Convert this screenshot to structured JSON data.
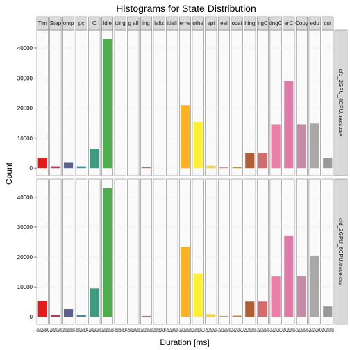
{
  "chart_data": {
    "type": "bar",
    "title": "Histograms for State Distribution",
    "xlabel": "Duration [ms]",
    "ylabel": "Count",
    "ylim": [
      -2500,
      46000
    ],
    "yticks": [
      0,
      10000,
      20000,
      30000,
      40000
    ],
    "y_tick_labels": [
      "0",
      "10000",
      "20000",
      "30000",
      "40000"
    ],
    "grid": true,
    "x_tick_labels": "-250250500",
    "column_labels": [
      "Tim",
      "Step",
      "omp",
      "pc",
      "C",
      "Idle",
      "tting",
      "g all",
      "ing",
      "ializ",
      "itiali",
      "erhe",
      "othe",
      "epi",
      "eei",
      "ocat",
      "hing",
      "ngC",
      "tingC",
      "erC",
      "Copy",
      "edu",
      "cut"
    ],
    "row_labels": [
      "cfd_2GPU_4CPU.trace.csv",
      "cfd_2GPU_6CPU.trace.csv"
    ],
    "colors": [
      "#e41a1c",
      "#a8405b",
      "#5d618f",
      "#4c8a9a",
      "#3f9b80",
      "#4daf4a",
      "#7f6a9a",
      "#984ea3",
      "#c76a6a",
      "#ff7f00",
      "#ff8f10",
      "#ffb21f",
      "#fff033",
      "#f8d23a",
      "#d9a53f",
      "#c58a2f",
      "#b25e35",
      "#d46c6f",
      "#ec7fa8",
      "#e07ba9",
      "#c58ba8",
      "#a9a9a9",
      "#999999"
    ],
    "series": [
      {
        "name": "cfd_2GPU_4CPU.trace.csv",
        "values": [
          3500,
          600,
          2000,
          600,
          6500,
          43000,
          0,
          0,
          300,
          0,
          0,
          21000,
          15500,
          800,
          300,
          400,
          5000,
          5000,
          14500,
          29000,
          14500,
          15000,
          3500
        ]
      },
      {
        "name": "cfd_2GPU_6CPU.trace.csv",
        "values": [
          5300,
          700,
          2600,
          700,
          9500,
          43000,
          0,
          0,
          300,
          0,
          0,
          23500,
          14500,
          900,
          300,
          400,
          5100,
          5100,
          13500,
          27000,
          13500,
          20500,
          3500
        ]
      }
    ]
  }
}
